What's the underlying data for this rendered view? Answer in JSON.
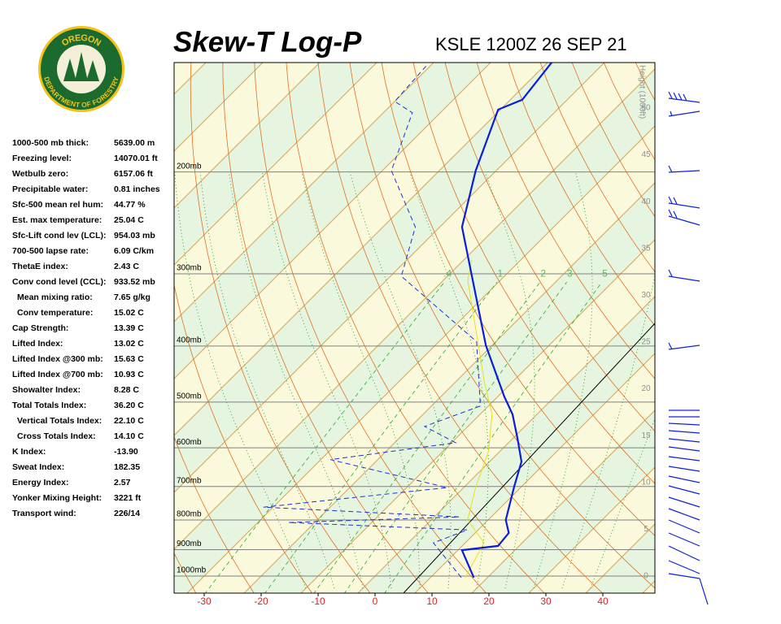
{
  "header": {
    "title": "Skew-T Log-P",
    "station": "KSLE 1200Z 26 SEP 21"
  },
  "logo": {
    "top": "OREGON",
    "bottom": "DEPARTMENT OF FORESTRY"
  },
  "indices": [
    {
      "label": "1000-500 mb thick:",
      "value": "5639.00 m"
    },
    {
      "label": "Freezing level:",
      "value": "14070.01 ft"
    },
    {
      "label": "Wetbulb zero:",
      "value": "6157.06 ft"
    },
    {
      "label": "Precipitable water:",
      "value": "0.81 inches"
    },
    {
      "label": "Sfc-500 mean rel hum:",
      "value": "44.77 %"
    },
    {
      "label": "Est. max temperature:",
      "value": "25.04 C"
    },
    {
      "label": "Sfc-Lift cond lev (LCL):",
      "value": "954.03 mb"
    },
    {
      "label": "700-500 lapse rate:",
      "value": "6.09 C/km"
    },
    {
      "label": "ThetaE index:",
      "value": "2.43 C"
    },
    {
      "label": "Conv cond level (CCL):",
      "value": "933.52 mb"
    },
    {
      "label": "Mean mixing ratio:",
      "value": "7.65 g/kg"
    },
    {
      "label": "Conv temperature:",
      "value": "15.02 C"
    },
    {
      "label": "Cap Strength:",
      "value": "13.39 C"
    },
    {
      "label": "Lifted Index:",
      "value": "13.02 C"
    },
    {
      "label": "Lifted Index @300 mb:",
      "value": "15.63 C"
    },
    {
      "label": "Lifted Index @700 mb:",
      "value": "10.93 C"
    },
    {
      "label": "Showalter Index:",
      "value": "8.28 C"
    },
    {
      "label": "Total Totals Index:",
      "value": "36.20 C"
    },
    {
      "label": "Vertical Totals Index:",
      "value": "22.10 C"
    },
    {
      "label": "Cross Totals Index:",
      "value": "14.10 C"
    },
    {
      "label": "K Index:",
      "value": "-13.90"
    },
    {
      "label": "Sweat Index:",
      "value": "182.35"
    },
    {
      "label": "Energy Index:",
      "value": "2.57"
    },
    {
      "label": "Yonker Mixing Height:",
      "value": "3221 ft"
    },
    {
      "label": "Transport wind:",
      "value": "226/14"
    }
  ],
  "chart_data": {
    "type": "skewt",
    "xticks": [
      -30,
      -20,
      -10,
      0,
      10,
      20,
      30,
      40
    ],
    "pressure_levels": [
      {
        "value": 1000,
        "label": "1000mb"
      },
      {
        "value": 900,
        "label": "900mb"
      },
      {
        "value": 800,
        "label": "800mb"
      },
      {
        "value": 700,
        "label": "700mb"
      },
      {
        "value": 600,
        "label": "600mb"
      },
      {
        "value": 500,
        "label": "500mb"
      },
      {
        "value": 400,
        "label": "400mb"
      },
      {
        "value": 300,
        "label": "300mb"
      },
      {
        "value": 200,
        "label": "200mb"
      }
    ],
    "height_axis": {
      "label": "Height (1000ft)",
      "ticks": [
        0,
        5,
        10,
        15,
        20,
        25,
        30,
        35,
        40,
        45,
        50
      ]
    },
    "mixing_ratio_labels": [
      {
        "value": 0.4,
        "label": ".4"
      },
      1,
      2,
      3,
      5
    ],
    "temperature": {
      "color": "#0a1ed8",
      "p": [
        1006,
        902,
        887,
        842,
        800,
        698,
        634,
        579,
        525,
        489,
        399,
        249,
        199,
        156,
        150,
        129
      ],
      "t": [
        17.6,
        10.7,
        16.3,
        15.9,
        13.1,
        8.6,
        5.6,
        0.9,
        -4.3,
        -8.9,
        -21.1,
        -46.1,
        -53.6,
        -60.4,
        -57.9,
        -59.3
      ]
    },
    "dewpoint": {
      "color": "#2030d0",
      "p": [
        1006,
        876,
        832,
        808,
        790,
        760,
        703,
        629,
        588,
        551,
        508,
        393,
        303,
        249,
        199,
        158,
        151,
        131
      ],
      "t": [
        15.4,
        4.4,
        8.1,
        -24.6,
        4.4,
        -31.7,
        -2.9,
        -28.3,
        -9.3,
        -17.6,
        -11.4,
        -23.4,
        -48.1,
        -54.3,
        -68.4,
        -74.9,
        -80,
        -80.7
      ]
    },
    "wetbulb": {
      "color": "#e6e020",
      "p": [
        1006,
        876,
        800,
        703,
        607,
        525,
        461,
        308,
        284
      ],
      "t": [
        16.1,
        13.3,
        6.4,
        2.1,
        -2.1,
        -7.9,
        -15,
        -35.7,
        -38.6
      ]
    }
  }
}
